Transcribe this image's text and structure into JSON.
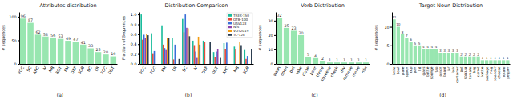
{
  "chart_data": [
    {
      "type": "bar",
      "title": "Attributes distribution",
      "caption": "(a)",
      "y_label": "# sequences",
      "categories": [
        "POC",
        "SC",
        "ARC",
        "IV",
        "MB",
        "ROT",
        "FM",
        "DEF",
        "SOB",
        "BC",
        "LR",
        "FOC",
        "OUT"
      ],
      "values": [
        96,
        87,
        62,
        58,
        56,
        53,
        49,
        47,
        41,
        33,
        25,
        20,
        16
      ],
      "color": "#98e6b0",
      "ylim": [
        0,
        110
      ],
      "yticks": [
        0,
        50,
        100
      ],
      "data_labels": true
    },
    {
      "type": "bar",
      "title": "Distribution Comparison",
      "caption": "(b)",
      "y_label": "Fraction of Sequences",
      "categories": [
        "POC",
        "FOC",
        "FM",
        "LR",
        "SC",
        "IV",
        "DEF",
        "OUT",
        "ARC",
        "MB",
        "SOB"
      ],
      "series": [
        {
          "name": "TREK-150",
          "color": "#1abc9c",
          "values": [
            1.0,
            0.62,
            0.78,
            0.52,
            0.91,
            0.47,
            0.47,
            0.24,
            0.42,
            0.35,
            0.28
          ]
        },
        {
          "name": "OTB-100",
          "color": "#e74c3c",
          "values": [
            0.49,
            0.2,
            0.39,
            0.09,
            0.64,
            0.38,
            0.44,
            0.14,
            0.3,
            0.29,
            0.1
          ]
        },
        {
          "name": "UAV123",
          "color": "#3a6fd8",
          "values": [
            0.59,
            0.26,
            0.32,
            0.39,
            1.0,
            0.25,
            0.0,
            0.25,
            0.43,
            0.0,
            0.16
          ]
        },
        {
          "name": "NfS",
          "color": "#8e44ad",
          "values": [
            0.52,
            0.0,
            0.28,
            0.0,
            0.73,
            0.12,
            0.0,
            0.3,
            0.0,
            0.0,
            0.0
          ]
        },
        {
          "name": "VOT2019",
          "color": "#f39c12",
          "values": [
            0.6,
            0.0,
            0.52,
            0.0,
            0.72,
            0.55,
            0.0,
            0.0,
            0.0,
            0.45,
            0.0
          ]
        },
        {
          "name": "TC-128",
          "color": "#2c3e50",
          "values": [
            0.58,
            0.0,
            0.52,
            0.1,
            0.56,
            0.39,
            0.45,
            0.12,
            0.0,
            0.38,
            0.3
          ]
        }
      ],
      "ylim": [
        0,
        1.05
      ],
      "yticks": [
        {
          "value": 0,
          "label": "0.0"
        },
        {
          "value": 0.2,
          "label": "0.2"
        },
        {
          "value": 0.4,
          "label": "0.4"
        },
        {
          "value": 0.6,
          "label": "0.6"
        },
        {
          "value": 0.8,
          "label": "0.8"
        },
        {
          "value": 1,
          "label": "1.0"
        }
      ],
      "legend": "upper right"
    },
    {
      "type": "bar",
      "title": "Verb Distribution",
      "caption": "(c)",
      "y_label": "# sequences",
      "categories": [
        "wash",
        "open",
        "put",
        "take",
        "close",
        "pour",
        "throw",
        "squeeze",
        "check",
        "dry",
        "remove",
        "move",
        "mix"
      ],
      "values": [
        32,
        25,
        23,
        20,
        5,
        4,
        2,
        1,
        1,
        1,
        1,
        1,
        1
      ],
      "color": "#98e6b0",
      "ylim": [
        0,
        36
      ],
      "yticks": [
        0,
        10,
        20,
        30
      ],
      "data_labels": true
    },
    {
      "type": "bar",
      "title": "Target Noun Distribution",
      "caption": "(d)",
      "y_label": "# sequences",
      "categories": [
        "knife",
        "bowl",
        "plate",
        "spoon",
        "cup",
        "pan",
        "lid",
        "glass",
        "bottle",
        "sponge",
        "tap",
        "onion",
        "board",
        "jar",
        "fork",
        "container",
        "pot",
        "spatula",
        "tomato",
        "bag",
        "carrot",
        "kettle",
        "package",
        "mug",
        "colander",
        "cheese",
        "potato",
        "pepper"
      ],
      "values": [
        12,
        10,
        8,
        7,
        6,
        5,
        5,
        4,
        4,
        4,
        4,
        3,
        3,
        3,
        3,
        3,
        2,
        2,
        2,
        2,
        2,
        1,
        1,
        1,
        1,
        1,
        1,
        1
      ],
      "color": "#98e6b0",
      "ylim": [
        0,
        14
      ],
      "yticks": [
        0,
        5,
        10
      ],
      "data_labels": true
    }
  ]
}
